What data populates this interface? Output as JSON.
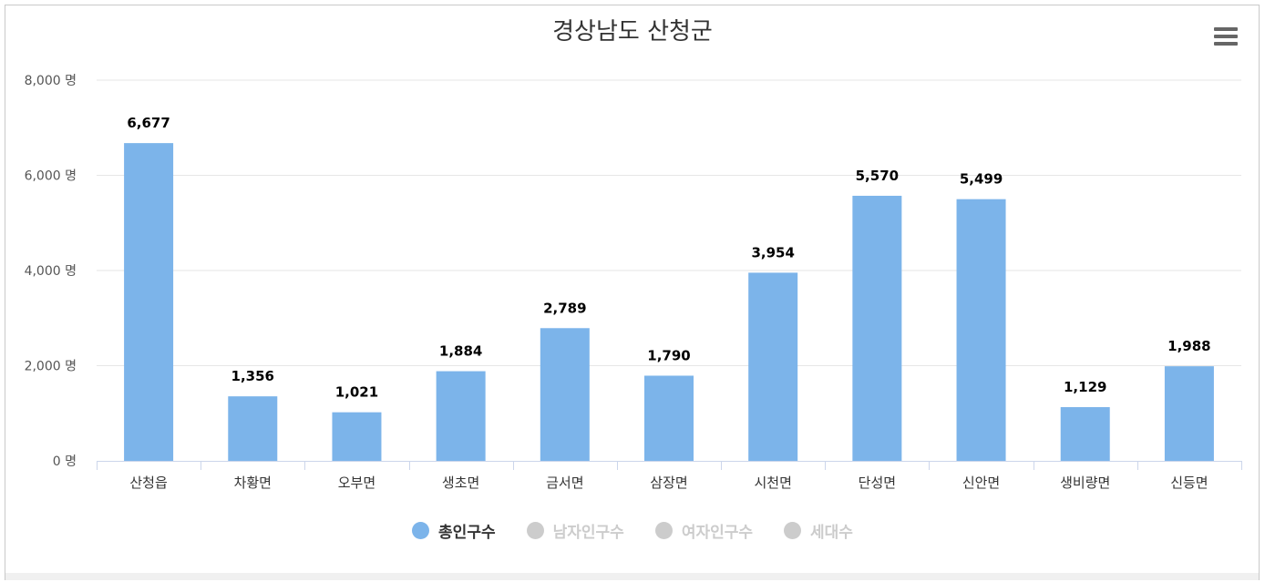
{
  "title": "경상남도 산청군",
  "menu_icon": "hamburger-menu-icon",
  "colors": {
    "bar": "#7cb4ea",
    "legend_active": "#7cb4ea",
    "legend_inactive": "#cccccc",
    "text_active": "#333333",
    "text_inactive": "#cccccc"
  },
  "legend": [
    {
      "label": "총인구수",
      "active": true
    },
    {
      "label": "남자인구수",
      "active": false
    },
    {
      "label": "여자인구수",
      "active": false
    },
    {
      "label": "세대수",
      "active": false
    }
  ],
  "chart_data": {
    "type": "bar",
    "title": "경상남도 산청군",
    "categories": [
      "산청읍",
      "차황면",
      "오부면",
      "생초면",
      "금서면",
      "삼장면",
      "시천면",
      "단성면",
      "신안면",
      "생비량면",
      "신등면"
    ],
    "series": [
      {
        "name": "총인구수",
        "values": [
          6677,
          1356,
          1021,
          1884,
          2789,
          1790,
          3954,
          5570,
          5499,
          1129,
          1988
        ]
      }
    ],
    "data_labels": [
      "6,677",
      "1,356",
      "1,021",
      "1,884",
      "2,789",
      "1,790",
      "3,954",
      "5,570",
      "5,499",
      "1,129",
      "1,988"
    ],
    "y_ticks": [
      {
        "value": 0,
        "label": "0 명"
      },
      {
        "value": 2000,
        "label": "2,000 명"
      },
      {
        "value": 4000,
        "label": "4,000 명"
      },
      {
        "value": 6000,
        "label": "6,000 명"
      },
      {
        "value": 8000,
        "label": "8,000 명"
      }
    ],
    "ylim": [
      0,
      8000
    ],
    "grid": true,
    "legend_position": "bottom"
  }
}
